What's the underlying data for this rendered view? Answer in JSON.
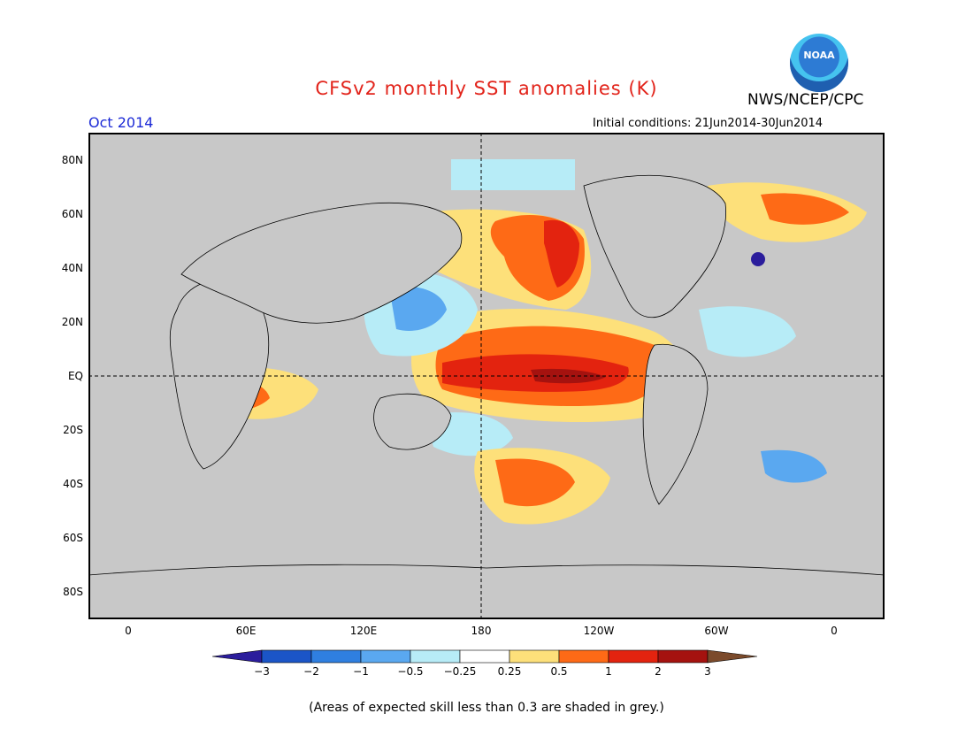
{
  "title": "CFSv2 monthly SST anomalies (K)",
  "agency": "NWS/NCEP/CPC",
  "logo_text": "NOAA",
  "period": "Oct 2014",
  "initial_conditions": "Initial conditions: 21Jun2014-30Jun2014",
  "lat_labels": [
    "80N",
    "60N",
    "40N",
    "20N",
    "EQ",
    "20S",
    "40S",
    "60S",
    "80S"
  ],
  "lon_labels": [
    "0",
    "60E",
    "120E",
    "180",
    "120W",
    "60W",
    "0"
  ],
  "colorbar": {
    "labels": [
      "−3",
      "−2",
      "−1",
      "−0.5",
      "−0.25",
      "0.25",
      "0.5",
      "1",
      "2",
      "3"
    ],
    "colors": [
      "#2b1d9c",
      "#1b55c7",
      "#2f7fe0",
      "#5aa8f0",
      "#b7ecf7",
      "#ffffff",
      "#fde07a",
      "#fe6a16",
      "#e3230f",
      "#a5120f",
      "#7b4a2b"
    ]
  },
  "skill_mask_color": "#c8c8c8",
  "footnote": "(Areas of expected skill less than 0.3 are shaded in grey.)"
}
